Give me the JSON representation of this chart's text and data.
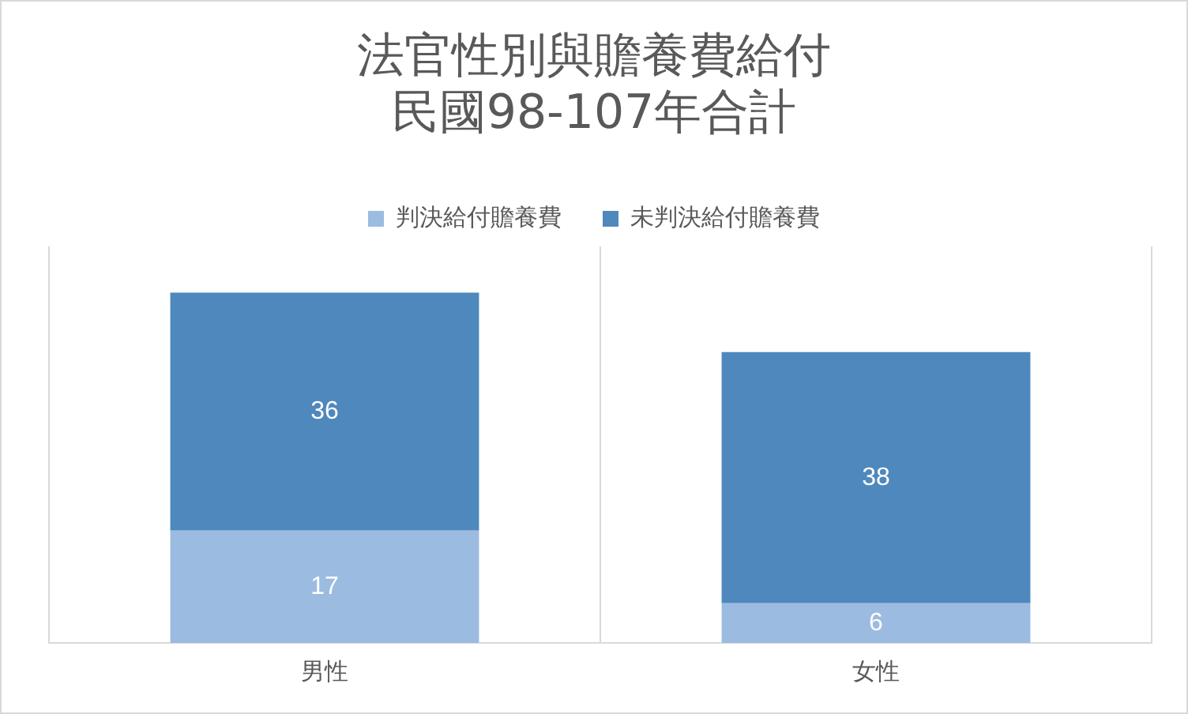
{
  "chart_data": {
    "type": "bar",
    "title": "法官性別與贍養費給付民國98-107年合計",
    "categories": [
      "男性",
      "女性"
    ],
    "stacked": true,
    "series": [
      {
        "name": "判決給付贍養費",
        "color": "#9bbbe0",
        "values": [
          17,
          6
        ]
      },
      {
        "name": "未判決給付贍養費",
        "color": "#4f88bd",
        "values": [
          36,
          38
        ]
      }
    ],
    "ylim": [
      0,
      60
    ],
    "grid": "x",
    "legend": "top",
    "tick_labels": "x",
    "data_labels": true
  }
}
